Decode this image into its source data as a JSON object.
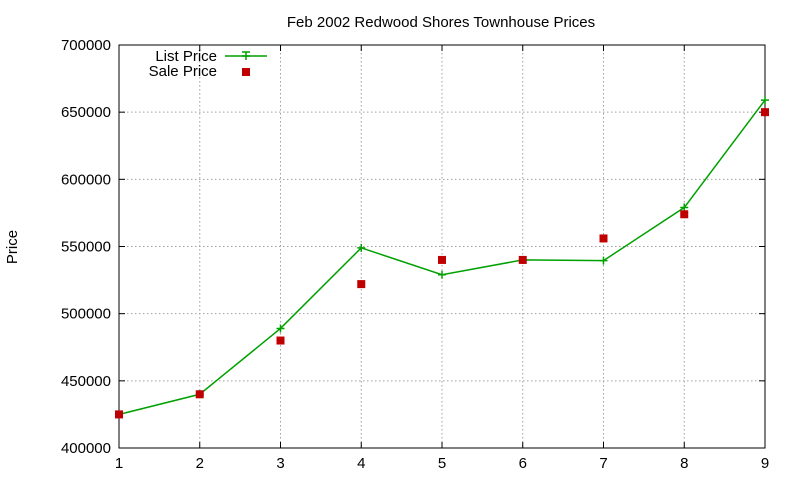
{
  "chart_data": {
    "type": "line",
    "title": "Feb 2002 Redwood Shores Townhouse Prices",
    "xlabel": "",
    "ylabel": "Price",
    "x": [
      1,
      2,
      3,
      4,
      5,
      6,
      7,
      8,
      9
    ],
    "xlim": [
      1,
      9
    ],
    "ylim": [
      400000,
      700000
    ],
    "xticks": [
      1,
      2,
      3,
      4,
      5,
      6,
      7,
      8,
      9
    ],
    "yticks": [
      400000,
      450000,
      500000,
      550000,
      600000,
      650000,
      700000
    ],
    "grid": true,
    "legend_position": "top-left",
    "series": [
      {
        "name": "List Price",
        "style": "line+cross",
        "color": "#00a000",
        "values": [
          425000,
          440000,
          489000,
          549000,
          529000,
          540000,
          539500,
          579000,
          659000
        ]
      },
      {
        "name": "Sale Price",
        "style": "square",
        "color": "#c00000",
        "values": [
          425000,
          440000,
          480000,
          522000,
          540000,
          540000,
          556000,
          574000,
          650000
        ]
      }
    ]
  }
}
